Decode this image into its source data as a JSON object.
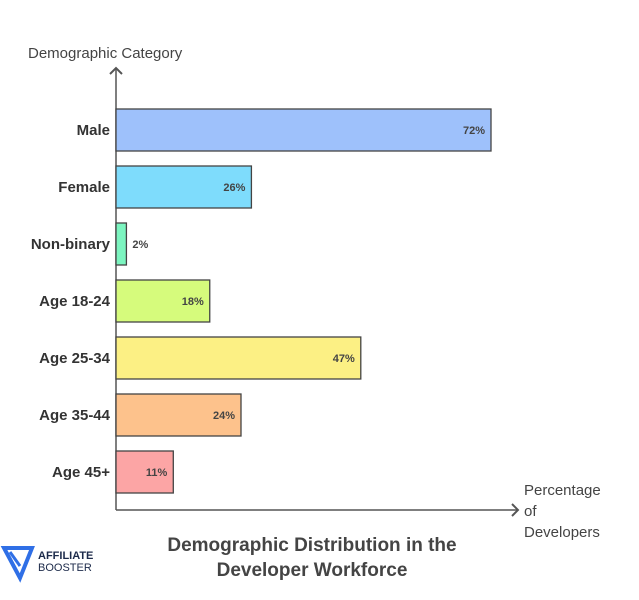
{
  "chart_data": {
    "type": "bar",
    "orientation": "horizontal",
    "title": [
      "Demographic Distribution in the",
      "Developer Workforce"
    ],
    "ylabel": "Demographic Category",
    "xlabel": [
      "Percentage",
      "of",
      "Developers"
    ],
    "categories": [
      "Male",
      "Female",
      "Non-binary",
      "Age 18-24",
      "Age 25-34",
      "Age 35-44",
      "Age 45+"
    ],
    "values": [
      72,
      26,
      2,
      18,
      47,
      24,
      11
    ],
    "labels": [
      "72%",
      "26%",
      "2%",
      "18%",
      "47%",
      "24%",
      "11%"
    ],
    "colors": [
      "#9ec1fb",
      "#7edcfc",
      "#7cf5c0",
      "#d6fb7c",
      "#fcf084",
      "#fdc28c",
      "#fca5a5"
    ],
    "grid": false
  },
  "logo": {
    "line1": "AFFILIATE",
    "line2": "BOOSTER",
    "color": "#2f6fe6"
  }
}
